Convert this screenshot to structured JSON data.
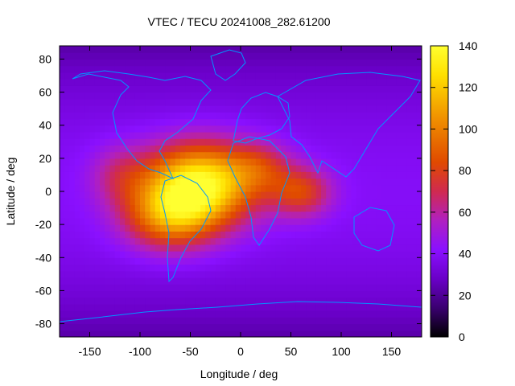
{
  "chart_data": {
    "type": "heatmap",
    "title": "VTEC / TECU 20241008_282.61200",
    "xlabel": "Longitude / deg",
    "ylabel": "Latitude / deg",
    "xlim": [
      -180,
      180
    ],
    "ylim": [
      -88,
      88
    ],
    "x_ticks": [
      -150,
      -100,
      -50,
      0,
      50,
      100,
      150
    ],
    "y_ticks": [
      -80,
      -60,
      -40,
      -20,
      0,
      20,
      40,
      60,
      80
    ],
    "colorbar": {
      "range": [
        0,
        140
      ],
      "ticks": [
        0,
        20,
        40,
        60,
        80,
        100,
        120,
        140
      ],
      "palette": [
        "#000000",
        "#3a0070",
        "#6a00c8",
        "#8a10ff",
        "#b020c0",
        "#d02a50",
        "#e04a00",
        "#f09000",
        "#ffe000",
        "#ffff30"
      ]
    },
    "grid": false,
    "coastlines": true,
    "coastline_color": "#0096ff",
    "features": [
      {
        "lon": -40,
        "lat": 5,
        "value": 95,
        "sigma_lon": 55,
        "sigma_lat": 24
      },
      {
        "lon": -70,
        "lat": -15,
        "value": 55,
        "sigma_lon": 45,
        "sigma_lat": 20
      },
      {
        "lon": 60,
        "lat": 0,
        "value": 40,
        "sigma_lon": 30,
        "sigma_lat": 15
      },
      {
        "lon": 20,
        "lat": 15,
        "value": 25,
        "sigma_lon": 30,
        "sigma_lat": 15
      },
      {
        "lon": -120,
        "lat": 10,
        "value": 20,
        "sigma_lon": 30,
        "sigma_lat": 18
      }
    ],
    "base_value": 40
  }
}
